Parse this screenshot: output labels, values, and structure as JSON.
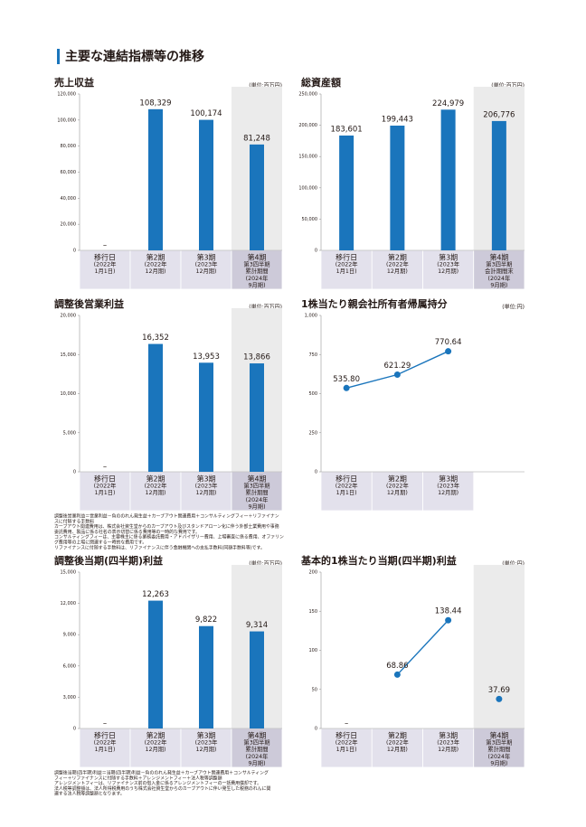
{
  "page_title": "主要な連結指標等の推移",
  "chart_data": [
    {
      "type": "bar",
      "title": "売上収益",
      "unit": "(単位:百万円)",
      "color": "#1a75bc",
      "categories": [
        [
          "移行日",
          "(2022年",
          "1月1日)"
        ],
        [
          "第2期",
          "(2022年",
          "12月期)"
        ],
        [
          "第3期",
          "(2023年",
          "12月期)"
        ],
        [
          "第4期",
          "第3四半期",
          "累計期間",
          "(2024年",
          "9月期)"
        ]
      ],
      "values": [
        null,
        108329,
        100174,
        81248
      ],
      "value_labels": [
        "–",
        "108,329",
        "100,174",
        "81,248"
      ],
      "ylim": [
        0,
        120000
      ],
      "yticks": [
        0,
        {
          "value": 20000,
          "label": "20,000"
        },
        {
          "value": 40000,
          "label": "40,000"
        },
        {
          "value": 60000,
          "label": "60,000"
        },
        {
          "value": 80000,
          "label": "80,000"
        },
        {
          "value": 100000,
          "label": "100,000"
        },
        {
          "value": 120000,
          "label": "120,000"
        }
      ]
    },
    {
      "type": "bar",
      "title": "総資産額",
      "unit": "(単位:百万円)",
      "color": "#1a75bc",
      "categories": [
        [
          "移行日",
          "(2022年",
          "1月1日)"
        ],
        [
          "第2期",
          "(2022年",
          "12月期)"
        ],
        [
          "第3期",
          "(2023年",
          "12月期)"
        ],
        [
          "第4期",
          "第3四半期",
          "会計期間末",
          "(2024年",
          "9月期)"
        ]
      ],
      "values": [
        183601,
        199443,
        224979,
        206776
      ],
      "value_labels": [
        "183,601",
        "199,443",
        "224,979",
        "206,776"
      ],
      "ylim": [
        0,
        250000
      ],
      "yticks": [
        0,
        {
          "value": 50000,
          "label": "50,000"
        },
        {
          "value": 100000,
          "label": "100,000"
        },
        {
          "value": 150000,
          "label": "150,000"
        },
        {
          "value": 200000,
          "label": "200,000"
        },
        {
          "value": 250000,
          "label": "250,000"
        }
      ]
    },
    {
      "type": "bar",
      "title": "調整後営業利益",
      "unit": "(単位:百万円)",
      "color": "#1a75bc",
      "categories": [
        [
          "移行日",
          "(2022年",
          "1月1日)"
        ],
        [
          "第2期",
          "(2022年",
          "12月期)"
        ],
        [
          "第3期",
          "(2023年",
          "12月期)"
        ],
        [
          "第4期",
          "第3四半期",
          "累計期間",
          "(2024年",
          "9月期)"
        ]
      ],
      "values": [
        null,
        16352,
        13953,
        13866
      ],
      "value_labels": [
        "–",
        "16,352",
        "13,953",
        "13,866"
      ],
      "ylim": [
        0,
        20000
      ],
      "yticks": [
        0,
        {
          "value": 5000,
          "label": "5,000"
        },
        {
          "value": 10000,
          "label": "10,000"
        },
        {
          "value": 15000,
          "label": "15,000"
        },
        {
          "value": 20000,
          "label": "20,000"
        }
      ],
      "notes": [
        "調整後営業利益＝営業利益－負ののれん発生益＋カーブアウト関連費用＋コンサルティングフィー＋リファイナン",
        "スに付随する手数料",
        "カーブアウト関連費用は、株式会社資生堂からのカーブアウト及びスタンドアローン化に伴う外部士業費用や事務",
        "委託費用、製品に係る社名の表示切替に係る費用等の一時的な費用です。",
        "コンサルティングフィーは、主要株主に係る業務委託費用・アドバイザリー費用、上場審査に係る費用、オファリン",
        "グ費用等の上場に関連する一時的な費用です。",
        "リファイナンスに付随する手数料は、リファイナンスに伴う金融機関への支払手数料(同額手数料等)です。"
      ]
    },
    {
      "type": "line",
      "title": "1株当たり親会社所有者帰属持分",
      "unit": "(単位:円)",
      "categories": [
        [
          "移行日",
          "(2022年",
          "1月1日)"
        ],
        [
          "第2期",
          "(2022年",
          "12月期)"
        ],
        [
          "第3期",
          "(2023年",
          "12月期)"
        ]
      ],
      "series": [
        {
          "color": "#1a75bc",
          "values": [
            535.8,
            621.29,
            770.64
          ],
          "value_labels": [
            "535.80",
            "621.29",
            "770.64"
          ]
        }
      ],
      "ylim": [
        0,
        1000
      ],
      "yticks": [
        0,
        250,
        500,
        750,
        {
          "value": 1000,
          "label": "1,000"
        }
      ]
    },
    {
      "type": "bar",
      "title": "調整後当期(四半期)利益",
      "unit": "(単位:百万円)",
      "color": "#1a75bc",
      "categories": [
        [
          "移行日",
          "(2022年",
          "1月1日)"
        ],
        [
          "第2期",
          "(2022年",
          "12月期)"
        ],
        [
          "第3期",
          "(2023年",
          "12月期)"
        ],
        [
          "第4期",
          "第3四半期",
          "累計期間",
          "(2024年",
          "9月期)"
        ]
      ],
      "values": [
        null,
        12263,
        9822,
        9314
      ],
      "value_labels": [
        "–",
        "12,263",
        "9,822",
        "9,314"
      ],
      "ylim": [
        0,
        15000
      ],
      "yticks": [
        0,
        {
          "value": 3000,
          "label": "3,000"
        },
        {
          "value": 6000,
          "label": "6,000"
        },
        {
          "value": 9000,
          "label": "9,000"
        },
        {
          "value": 12000,
          "label": "12,000"
        },
        {
          "value": 15000,
          "label": "15,000"
        }
      ],
      "notes": [
        "調整後当期(四半期)利益＝当期(四半期)利益－負ののれん発生益＋カーブアウト関連費用＋コンサルティング",
        "フィー＋リファイナンスに付随する手数料＋アレンジメントフィー＋法人税等調整額",
        "アレンジメントフィーは、リファイナンス前の借入金に係るアレンジメントフィーの一括費用償却です。",
        "法人税等調整額は、法人所得税費用のうち株式会社資生堂からのカーブアウトに伴い発生した税務のれんに関",
        "連する法人税等調整額となります。"
      ]
    },
    {
      "type": "line",
      "title": "基本的1株当たり当期(四半期)利益",
      "unit": "(単位:円)",
      "categories": [
        [
          "移行日",
          "(2022年",
          "1月1日)"
        ],
        [
          "第2期",
          "(2022年",
          "12月期)"
        ],
        [
          "第3期",
          "(2023年",
          "12月期)"
        ],
        [
          "第4期",
          "第3四半期",
          "累計期間",
          "(2024年",
          "9月期)"
        ]
      ],
      "series": [
        {
          "color": "#1a75bc",
          "values": [
            null,
            68.86,
            138.44,
            null
          ],
          "value_labels": [
            "–",
            "68.86",
            "138.44",
            null
          ]
        },
        {
          "color": "#1a75bc",
          "values": [
            null,
            null,
            null,
            37.69
          ],
          "value_labels": [
            null,
            null,
            null,
            "37.69"
          ]
        }
      ],
      "ylim": [
        0,
        200
      ],
      "yticks": [
        0,
        50,
        100,
        150,
        200
      ]
    }
  ]
}
